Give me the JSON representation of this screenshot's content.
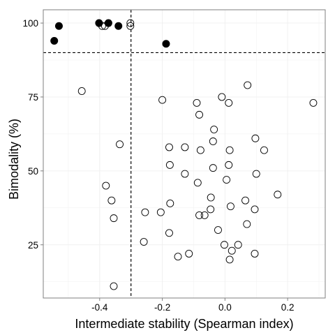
{
  "chart_data": {
    "type": "scatter",
    "xlabel": "Intermediate stability (Spearman index)",
    "ylabel": "Bimodality (%)",
    "xlim": [
      -0.58,
      0.32
    ],
    "ylim": [
      7,
      104.5
    ],
    "xticks": [
      {
        "value": -0.4,
        "label": "-0.4"
      },
      {
        "value": -0.2,
        "label": "-0.2"
      },
      {
        "value": 0.0,
        "label": "0.0"
      },
      {
        "value": 0.2,
        "label": "0.2"
      }
    ],
    "yticks": [
      {
        "value": 25,
        "label": "25"
      },
      {
        "value": 50,
        "label": "50"
      },
      {
        "value": 75,
        "label": "75"
      },
      {
        "value": 100,
        "label": "100"
      }
    ],
    "grid": true,
    "reference_lines": {
      "x": -0.3,
      "y": 90
    },
    "marker_colors": {
      "filled": "#000000",
      "open_stroke": "#000000",
      "panel_border": "#7f7f7f",
      "grid": "#f0f0f0"
    },
    "series": [
      {
        "style": "filled",
        "points": [
          {
            "x": -0.545,
            "y": 94
          },
          {
            "x": -0.53,
            "y": 99
          },
          {
            "x": -0.402,
            "y": 100
          },
          {
            "x": -0.372,
            "y": 100
          },
          {
            "x": -0.34,
            "y": 99
          },
          {
            "x": -0.188,
            "y": 93
          }
        ]
      },
      {
        "style": "open",
        "points": [
          {
            "x": -0.392,
            "y": 99
          },
          {
            "x": -0.383,
            "y": 99
          },
          {
            "x": -0.302,
            "y": 100
          },
          {
            "x": -0.302,
            "y": 99
          },
          {
            "x": -0.457,
            "y": 77
          },
          {
            "x": -0.2,
            "y": 74
          },
          {
            "x": 0.072,
            "y": 79
          },
          {
            "x": -0.01,
            "y": 75
          },
          {
            "x": -0.09,
            "y": 73
          },
          {
            "x": 0.012,
            "y": 73
          },
          {
            "x": 0.282,
            "y": 73
          },
          {
            "x": -0.082,
            "y": 69
          },
          {
            "x": -0.035,
            "y": 64
          },
          {
            "x": 0.097,
            "y": 61
          },
          {
            "x": -0.336,
            "y": 59
          },
          {
            "x": -0.178,
            "y": 58
          },
          {
            "x": -0.128,
            "y": 58
          },
          {
            "x": -0.078,
            "y": 57
          },
          {
            "x": 0.015,
            "y": 57
          },
          {
            "x": 0.125,
            "y": 57
          },
          {
            "x": -0.038,
            "y": 60
          },
          {
            "x": -0.176,
            "y": 52
          },
          {
            "x": 0.012,
            "y": 52
          },
          {
            "x": -0.038,
            "y": 51
          },
          {
            "x": -0.128,
            "y": 49
          },
          {
            "x": 0.1,
            "y": 49
          },
          {
            "x": 0.005,
            "y": 47
          },
          {
            "x": -0.087,
            "y": 46
          },
          {
            "x": -0.38,
            "y": 45
          },
          {
            "x": 0.168,
            "y": 42
          },
          {
            "x": -0.045,
            "y": 41
          },
          {
            "x": -0.362,
            "y": 40
          },
          {
            "x": 0.065,
            "y": 40
          },
          {
            "x": -0.175,
            "y": 39
          },
          {
            "x": 0.018,
            "y": 38
          },
          {
            "x": -0.046,
            "y": 37
          },
          {
            "x": 0.095,
            "y": 37
          },
          {
            "x": -0.255,
            "y": 36
          },
          {
            "x": -0.205,
            "y": 36
          },
          {
            "x": -0.082,
            "y": 35
          },
          {
            "x": -0.065,
            "y": 35
          },
          {
            "x": -0.355,
            "y": 34
          },
          {
            "x": 0.07,
            "y": 32
          },
          {
            "x": -0.022,
            "y": 30
          },
          {
            "x": -0.178,
            "y": 29
          },
          {
            "x": -0.259,
            "y": 26
          },
          {
            "x": -0.002,
            "y": 25
          },
          {
            "x": 0.042,
            "y": 25
          },
          {
            "x": 0.022,
            "y": 23
          },
          {
            "x": -0.115,
            "y": 22
          },
          {
            "x": 0.095,
            "y": 22
          },
          {
            "x": -0.15,
            "y": 21
          },
          {
            "x": 0.015,
            "y": 20
          },
          {
            "x": -0.355,
            "y": 11
          }
        ]
      }
    ]
  }
}
